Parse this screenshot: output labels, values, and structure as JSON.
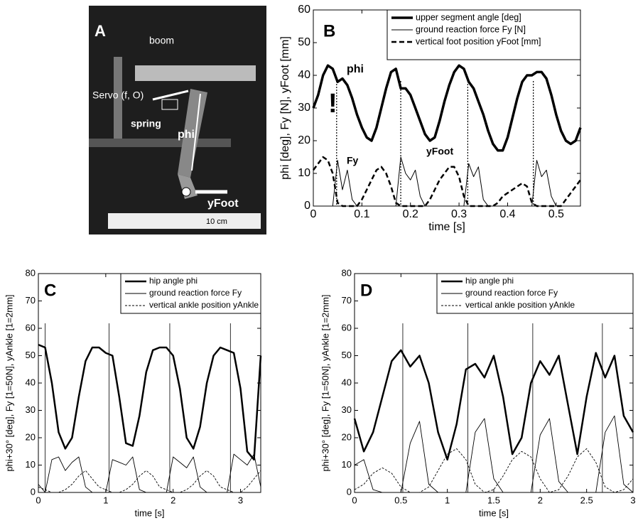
{
  "photo": {
    "panel": "A",
    "labels": [
      "boom",
      "Servo (f, O)",
      "spring",
      "phi",
      "yFoot",
      "10 cm"
    ]
  },
  "chart_data": [
    {
      "type": "line",
      "panel": "B",
      "x_label": "time [s]",
      "y_label": "phi [deg], Fy [N], yFoot [mm]",
      "xlim": [
        0,
        0.55
      ],
      "ylim": [
        0,
        60
      ],
      "xticks": [
        0,
        0.1,
        0.2,
        0.3,
        0.4,
        0.5
      ],
      "yticks": [
        0,
        10,
        20,
        30,
        40,
        50,
        60
      ],
      "annotations": [
        "phi",
        "!",
        "Fy",
        "yFoot"
      ],
      "vlines": [
        0.048,
        0.18,
        0.318,
        0.453
      ],
      "x": [
        0,
        0.01,
        0.02,
        0.03,
        0.04,
        0.05,
        0.06,
        0.07,
        0.08,
        0.09,
        0.1,
        0.11,
        0.12,
        0.13,
        0.14,
        0.15,
        0.16,
        0.17,
        0.18,
        0.19,
        0.2,
        0.21,
        0.22,
        0.23,
        0.24,
        0.25,
        0.26,
        0.27,
        0.28,
        0.29,
        0.3,
        0.31,
        0.32,
        0.33,
        0.34,
        0.35,
        0.36,
        0.37,
        0.38,
        0.39,
        0.4,
        0.41,
        0.42,
        0.43,
        0.44,
        0.45,
        0.46,
        0.47,
        0.48,
        0.49,
        0.5,
        0.51,
        0.52,
        0.53,
        0.54,
        0.55
      ],
      "series": [
        {
          "name": "upper segment angle [deg]",
          "color": "#000",
          "width": 3.5,
          "dash": false,
          "values": [
            30,
            34,
            40,
            43,
            42,
            38,
            39,
            37,
            33,
            28,
            24,
            21,
            20,
            24,
            30,
            36,
            41,
            42,
            36,
            36,
            34,
            30,
            26,
            22,
            20,
            21,
            26,
            32,
            37,
            41,
            43,
            42,
            38,
            36,
            32,
            28,
            23,
            19,
            17,
            17,
            21,
            27,
            33,
            38,
            40,
            40,
            41,
            41,
            39,
            34,
            28,
            23,
            20,
            19,
            20,
            24
          ]
        },
        {
          "name": "ground reaction force Fy [N]",
          "color": "#000",
          "width": 1,
          "dash": false,
          "values": [
            0,
            0,
            0,
            0,
            0,
            14,
            5,
            11,
            2,
            0,
            0,
            0,
            0,
            0,
            0,
            0,
            0,
            0,
            15,
            10,
            8,
            11,
            3,
            0,
            0,
            0,
            0,
            0,
            0,
            0,
            0,
            0,
            13,
            9,
            12,
            2,
            0,
            0,
            0,
            0,
            0,
            0,
            0,
            0,
            0,
            0,
            14,
            9,
            11,
            3,
            0,
            0,
            0,
            0,
            0,
            0
          ]
        },
        {
          "name": "vertical foot position yFoot [mm]",
          "color": "#000",
          "width": 2.5,
          "dash": true,
          "values": [
            11,
            13,
            15,
            14,
            10,
            1,
            0,
            0,
            0,
            0,
            2,
            5,
            8,
            11,
            12,
            10,
            6,
            1,
            0,
            0,
            0,
            0,
            0,
            0,
            2,
            5,
            8,
            10,
            12,
            12,
            9,
            3,
            0,
            0,
            0,
            0,
            0,
            0,
            1,
            3,
            4,
            5,
            6,
            7,
            6,
            1,
            0,
            0,
            0,
            0,
            0,
            0,
            2,
            4,
            6,
            8
          ]
        }
      ]
    },
    {
      "type": "line",
      "panel": "C",
      "x_label": "time [s]",
      "y_label": "phi+30° [deg], Fy [1=50N], yAnkle [1=2mm]",
      "xlim": [
        0,
        3.3
      ],
      "ylim": [
        0,
        80
      ],
      "xticks": [
        0,
        1,
        2,
        3
      ],
      "yticks": [
        0,
        10,
        20,
        30,
        40,
        50,
        60,
        70,
        80
      ],
      "vlines": [
        0.1,
        1.05,
        1.95,
        2.85
      ],
      "x": [
        0,
        0.1,
        0.2,
        0.3,
        0.4,
        0.5,
        0.6,
        0.7,
        0.8,
        0.9,
        1,
        1.1,
        1.2,
        1.3,
        1.4,
        1.5,
        1.6,
        1.7,
        1.8,
        1.9,
        2,
        2.1,
        2.2,
        2.3,
        2.4,
        2.5,
        2.6,
        2.7,
        2.8,
        2.9,
        3,
        3.1,
        3.2,
        3.3
      ],
      "series": [
        {
          "name": "hip angle phi",
          "color": "#000",
          "width": 2.5,
          "dash": false,
          "values": [
            54,
            53,
            40,
            22,
            16,
            20,
            35,
            48,
            53,
            53,
            51,
            50,
            35,
            18,
            17,
            28,
            44,
            52,
            53,
            53,
            50,
            38,
            20,
            16,
            24,
            40,
            50,
            53,
            52,
            51,
            38,
            15,
            12,
            50
          ]
        },
        {
          "name": "ground reaction force Fy",
          "color": "#000",
          "width": 0.9,
          "dash": false,
          "values": [
            3,
            0,
            12,
            13,
            8,
            11,
            13,
            2,
            0,
            0,
            0,
            12,
            11,
            10,
            13,
            1,
            0,
            0,
            0,
            0,
            13,
            11,
            9,
            13,
            2,
            0,
            0,
            0,
            0,
            14,
            12,
            10,
            14,
            2
          ]
        },
        {
          "name": "vertical ankle position yAnkle",
          "color": "#000",
          "width": 0.9,
          "dash": true,
          "values": [
            2,
            1,
            0,
            0,
            1,
            3,
            6,
            8,
            5,
            2,
            1,
            0,
            0,
            1,
            3,
            6,
            8,
            6,
            2,
            1,
            0,
            0,
            1,
            3,
            6,
            8,
            6,
            2,
            1,
            0,
            0,
            2,
            5,
            8
          ]
        }
      ]
    },
    {
      "type": "line",
      "panel": "D",
      "x_label": "time [s]",
      "y_label": "phi+30° [deg], Fy [1=50N], yAnkle [1=2mm]",
      "xlim": [
        0,
        3
      ],
      "ylim": [
        0,
        80
      ],
      "xticks": [
        0,
        0.5,
        1,
        1.5,
        2,
        2.5,
        3
      ],
      "yticks": [
        0,
        10,
        20,
        30,
        40,
        50,
        60,
        70,
        80
      ],
      "vlines": [
        0.52,
        1.22,
        1.92,
        2.67
      ],
      "x": [
        0,
        0.1,
        0.2,
        0.3,
        0.4,
        0.5,
        0.6,
        0.7,
        0.8,
        0.9,
        1,
        1.1,
        1.2,
        1.3,
        1.4,
        1.5,
        1.6,
        1.7,
        1.8,
        1.9,
        2,
        2.1,
        2.2,
        2.3,
        2.4,
        2.5,
        2.6,
        2.7,
        2.8,
        2.9,
        3
      ],
      "series": [
        {
          "name": "hip angle phi",
          "color": "#000",
          "width": 2.5,
          "dash": false,
          "values": [
            27,
            15,
            22,
            35,
            48,
            52,
            46,
            50,
            40,
            22,
            12,
            25,
            45,
            47,
            42,
            50,
            35,
            14,
            20,
            40,
            48,
            43,
            50,
            32,
            14,
            35,
            51,
            42,
            50,
            28,
            22
          ]
        },
        {
          "name": "ground reaction force Fy",
          "color": "#000",
          "width": 0.9,
          "dash": false,
          "values": [
            10,
            12,
            1,
            0,
            0,
            0,
            18,
            26,
            3,
            0,
            0,
            0,
            0,
            22,
            27,
            5,
            0,
            0,
            0,
            0,
            21,
            27,
            4,
            0,
            0,
            0,
            0,
            22,
            28,
            3,
            0
          ]
        },
        {
          "name": "vertical ankle position yAnkle",
          "color": "#000",
          "width": 0.9,
          "dash": true,
          "values": [
            1,
            3,
            7,
            9,
            7,
            2,
            0,
            0,
            2,
            8,
            14,
            16,
            12,
            3,
            0,
            1,
            6,
            12,
            15,
            13,
            5,
            0,
            1,
            6,
            13,
            16,
            11,
            2,
            0,
            1,
            5
          ]
        }
      ]
    }
  ]
}
